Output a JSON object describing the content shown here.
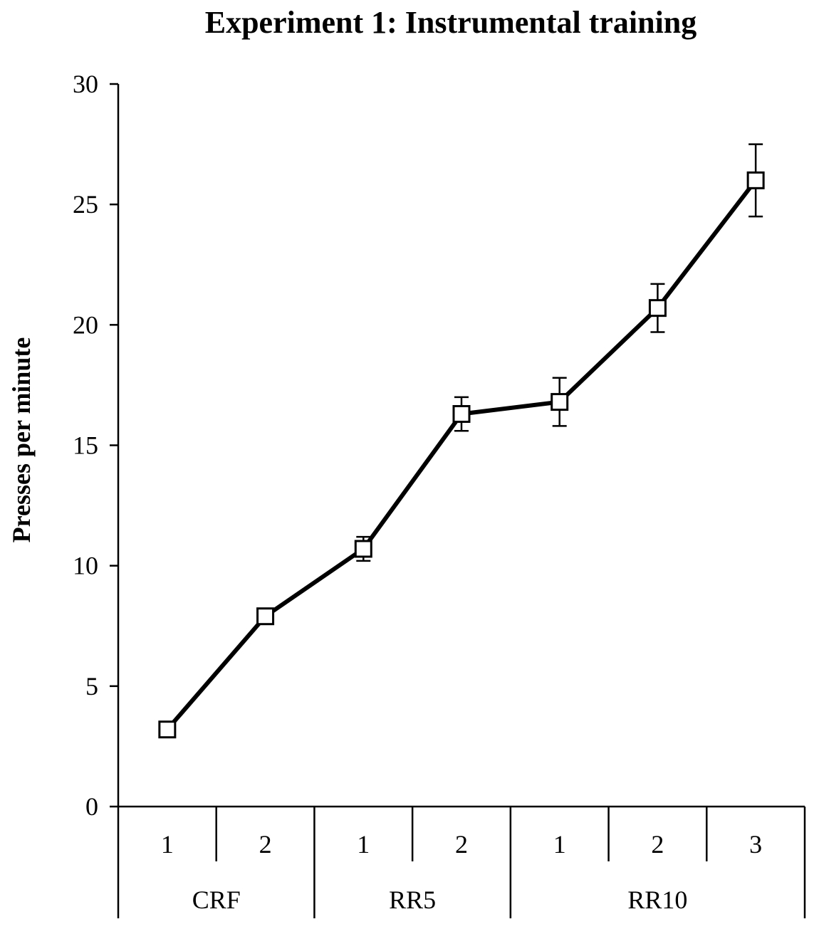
{
  "chart_data": {
    "type": "line",
    "title": "Experiment 1: Instrumental training",
    "ylabel": "Presses per minute",
    "xlabel": "",
    "ylim": [
      0,
      30
    ],
    "yticks": [
      0,
      5,
      10,
      15,
      20,
      25,
      30
    ],
    "grid": false,
    "legend": "none",
    "categories": [
      "1",
      "2",
      "1",
      "2",
      "1",
      "2",
      "3"
    ],
    "groups": [
      {
        "label": "CRF",
        "count": 2
      },
      {
        "label": "RR5",
        "count": 2
      },
      {
        "label": "RR10",
        "count": 3
      }
    ],
    "series": [
      {
        "values": [
          3.2,
          7.9,
          10.7,
          16.3,
          16.8,
          20.7,
          26.0
        ],
        "error": [
          0.1,
          0.2,
          0.5,
          0.7,
          1.0,
          1.0,
          1.5
        ],
        "marker": "open-square",
        "color": "#000000"
      }
    ]
  }
}
